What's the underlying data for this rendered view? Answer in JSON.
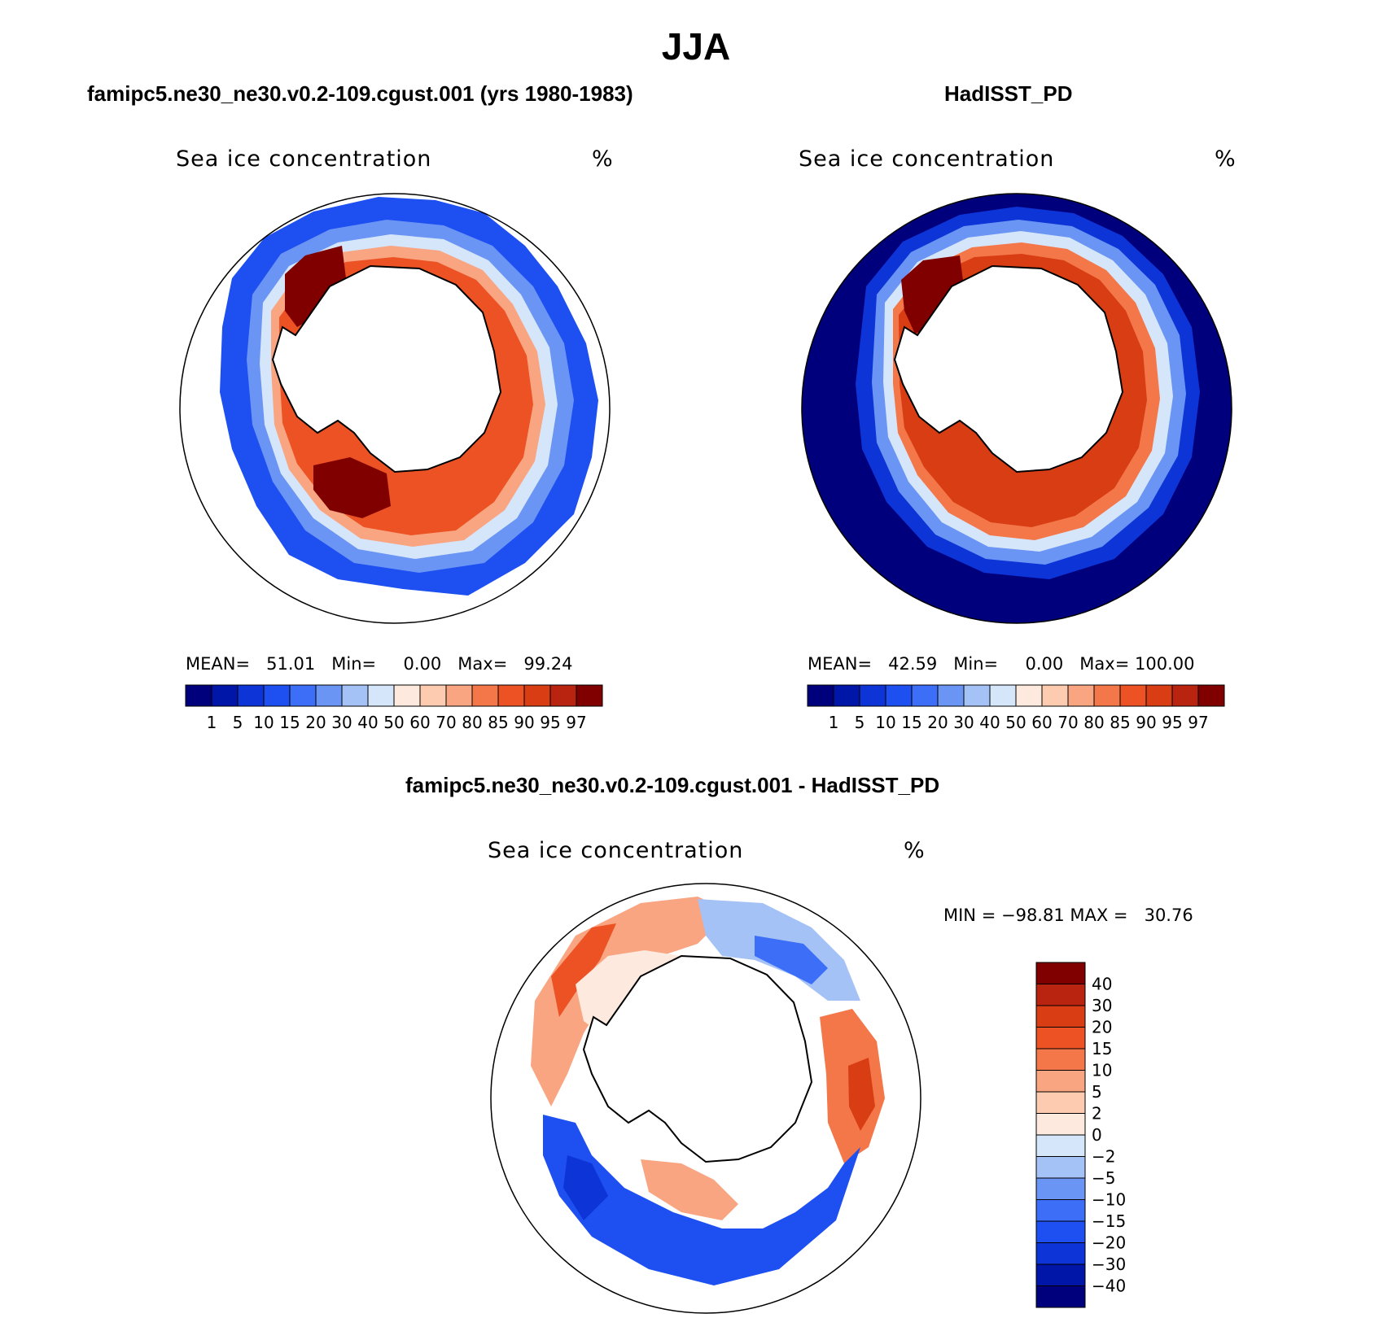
{
  "title": "JJA",
  "panels": [
    {
      "case_title": "famipc5.ne30_ne30.v0.2-109.cgust.001 (yrs 1980-1983)",
      "variable": "Sea ice concentration",
      "units": "%",
      "stats": {
        "mean_label": "MEAN=",
        "mean": "51.01",
        "min_label": "Min=",
        "min": "0.00",
        "max_label": "Max=",
        "max": "99.24"
      }
    },
    {
      "case_title": "HadISST_PD",
      "variable": "Sea ice concentration",
      "units": "%",
      "stats": {
        "mean_label": "MEAN=",
        "mean": "42.59",
        "min_label": "Min=",
        "min": "0.00",
        "max_label": "Max=",
        "max": "100.00"
      }
    },
    {
      "case_title": "famipc5.ne30_ne30.v0.2-109.cgust.001 - HadISST_PD",
      "variable": "Sea ice concentration",
      "units": "%",
      "stats": {
        "min_label": "MIN =",
        "min": "−98.81",
        "max_label": "MAX =",
        "max": "30.76"
      }
    }
  ],
  "colorbars": {
    "abs_levels": [
      "1",
      "5",
      "10",
      "15",
      "20",
      "30",
      "40",
      "50",
      "60",
      "70",
      "80",
      "85",
      "90",
      "95",
      "97"
    ],
    "abs_colors": [
      "#00007d",
      "#0016a8",
      "#0d34d6",
      "#1e4ff0",
      "#3d6ef7",
      "#6b95f5",
      "#a5c2f7",
      "#d5e6fa",
      "#fde9dd",
      "#fccbb0",
      "#f9a582",
      "#f4774a",
      "#ec5223",
      "#d83d14",
      "#b92410",
      "#800000"
    ],
    "diff_levels": [
      "40",
      "30",
      "20",
      "15",
      "10",
      "5",
      "2",
      "0",
      "−2",
      "−5",
      "−10",
      "−15",
      "−20",
      "−30",
      "−40"
    ],
    "diff_colors": [
      "#800000",
      "#b92410",
      "#d83d14",
      "#ec5223",
      "#f4774a",
      "#f9a582",
      "#fccbb0",
      "#fde9dd",
      "#d5e6fa",
      "#a5c2f7",
      "#6b95f5",
      "#3d6ef7",
      "#1e4ff0",
      "#0d34d6",
      "#0016a8",
      "#00007d"
    ]
  }
}
